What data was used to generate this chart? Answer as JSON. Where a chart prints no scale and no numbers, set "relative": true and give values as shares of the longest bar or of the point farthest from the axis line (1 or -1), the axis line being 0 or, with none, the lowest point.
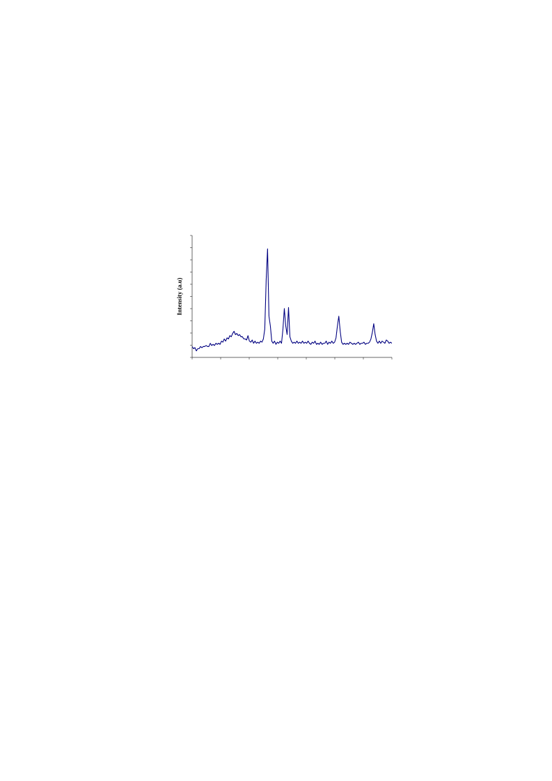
{
  "chart_data": {
    "type": "line",
    "ylabel": "Intensity (a.u)",
    "relative": true,
    "tick_labels": false,
    "color": "#000080",
    "categories": [
      null,
      null,
      null,
      null,
      null,
      null,
      null,
      null,
      null,
      null,
      null,
      null,
      null,
      null,
      null,
      null,
      null,
      null,
      null,
      null,
      null,
      null,
      null,
      null,
      null,
      null,
      null,
      null,
      null,
      null,
      null,
      null,
      null,
      null,
      null,
      null,
      null,
      null,
      null,
      null,
      null,
      null,
      null,
      null,
      null,
      null,
      null,
      null,
      null,
      null,
      null,
      null,
      null,
      null,
      null,
      null,
      null,
      null,
      null,
      null,
      null,
      null,
      null,
      null,
      null,
      null,
      null,
      null,
      null,
      null,
      null,
      null,
      null,
      null,
      null,
      null,
      null,
      null,
      null,
      null,
      null,
      null,
      null,
      null,
      null,
      null,
      null,
      null,
      null,
      null,
      null,
      null,
      null,
      null,
      null,
      null,
      null,
      null,
      null,
      null,
      null,
      null,
      null,
      null,
      null,
      null,
      null,
      null,
      null,
      null,
      null,
      null,
      null,
      null,
      null,
      null,
      null,
      null,
      null,
      null,
      null,
      null,
      null,
      null,
      null,
      null,
      null,
      null,
      null,
      null,
      null,
      null,
      null,
      null,
      null,
      null,
      null,
      null,
      null,
      null,
      null,
      null,
      null,
      null
    ],
    "values": [
      0.1,
      0.08,
      0.09,
      0.06,
      0.08,
      0.08,
      0.1,
      0.09,
      0.1,
      0.1,
      0.11,
      0.1,
      0.1,
      0.13,
      0.11,
      0.12,
      0.11,
      0.13,
      0.12,
      0.13,
      0.12,
      0.15,
      0.14,
      0.17,
      0.15,
      0.18,
      0.17,
      0.2,
      0.19,
      0.22,
      0.24,
      0.21,
      0.22,
      0.2,
      0.21,
      0.19,
      0.19,
      0.17,
      0.17,
      0.16,
      0.2,
      0.15,
      0.14,
      0.16,
      0.13,
      0.15,
      0.13,
      0.14,
      0.13,
      0.15,
      0.14,
      0.17,
      0.26,
      0.71,
      1,
      0.38,
      0.29,
      0.15,
      0.13,
      0.15,
      0.12,
      0.14,
      0.13,
      0.15,
      0.13,
      0.26,
      0.45,
      0.29,
      0.21,
      0.46,
      0.19,
      0.15,
      0.13,
      0.14,
      0.13,
      0.15,
      0.13,
      0.14,
      0.13,
      0.15,
      0.13,
      0.14,
      0.13,
      0.15,
      0.13,
      0.12,
      0.14,
      0.13,
      0.15,
      0.12,
      0.13,
      0.12,
      0.14,
      0.12,
      0.13,
      0.13,
      0.15,
      0.12,
      0.14,
      0.13,
      0.15,
      0.13,
      0.14,
      0.18,
      0.29,
      0.38,
      0.24,
      0.14,
      0.12,
      0.13,
      0.12,
      0.13,
      0.12,
      0.14,
      0.13,
      0.12,
      0.13,
      0.12,
      0.13,
      0.14,
      0.12,
      0.13,
      0.13,
      0.14,
      0.12,
      0.13,
      0.13,
      0.14,
      0.17,
      0.23,
      0.31,
      0.21,
      0.15,
      0.13,
      0.15,
      0.13,
      0.15,
      0.14,
      0.13,
      0.16,
      0.15,
      0.13,
      0.14,
      0.13
    ]
  }
}
